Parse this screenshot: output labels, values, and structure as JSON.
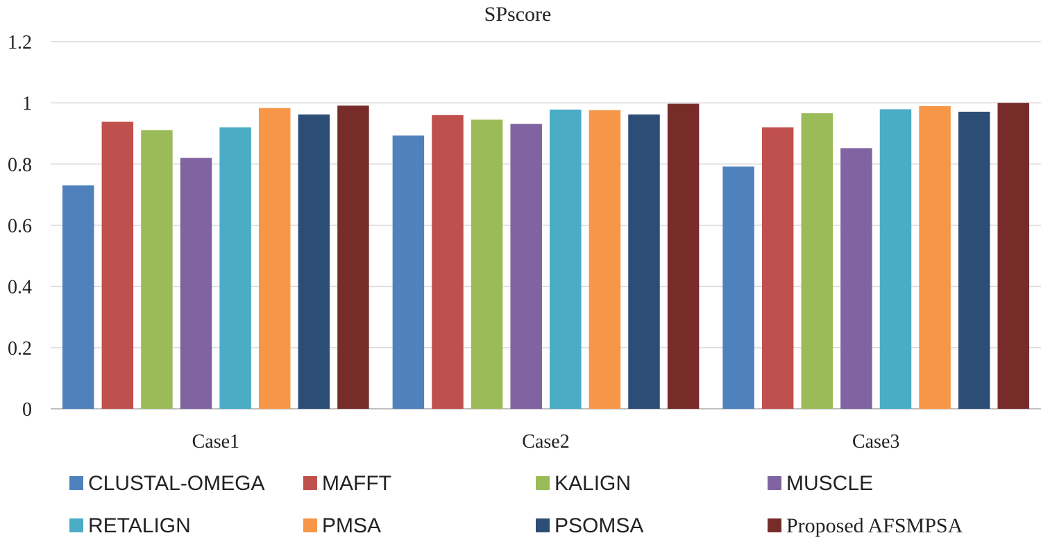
{
  "chart_data": {
    "type": "bar",
    "title": "SPscore",
    "xlabel": "",
    "ylabel": "",
    "ylim": [
      0,
      1.2
    ],
    "yticks": [
      0,
      0.2,
      0.4,
      0.6,
      0.8,
      1,
      1.2
    ],
    "ytick_labels": [
      "0",
      "0.2",
      "0.4",
      "0.6",
      "0.8",
      "1",
      "1.2"
    ],
    "grid": true,
    "legend_position": "bottom",
    "categories": [
      "Case1",
      "Case2",
      "Case3"
    ],
    "series": [
      {
        "name": "CLUSTAL-OMEGA",
        "color": "#4F81BD",
        "values": [
          0.73,
          0.893,
          0.792
        ]
      },
      {
        "name": "MAFFT",
        "color": "#C0504D",
        "values": [
          0.938,
          0.96,
          0.92
        ]
      },
      {
        "name": "KALIGN",
        "color": "#9BBB59",
        "values": [
          0.911,
          0.945,
          0.966
        ]
      },
      {
        "name": "MUSCLE",
        "color": "#8064A2",
        "values": [
          0.82,
          0.931,
          0.852
        ]
      },
      {
        "name": "RETALIGN",
        "color": "#4BACC6",
        "values": [
          0.92,
          0.978,
          0.979
        ]
      },
      {
        "name": "PMSA",
        "color": "#F79646",
        "values": [
          0.983,
          0.976,
          0.989
        ]
      },
      {
        "name": "PSOMSA",
        "color": "#2C4D75",
        "values": [
          0.962,
          0.962,
          0.971
        ]
      },
      {
        "name": "Proposed AFSMPSA",
        "color": "#772C2A",
        "values": [
          0.991,
          0.997,
          1.0
        ]
      }
    ]
  }
}
